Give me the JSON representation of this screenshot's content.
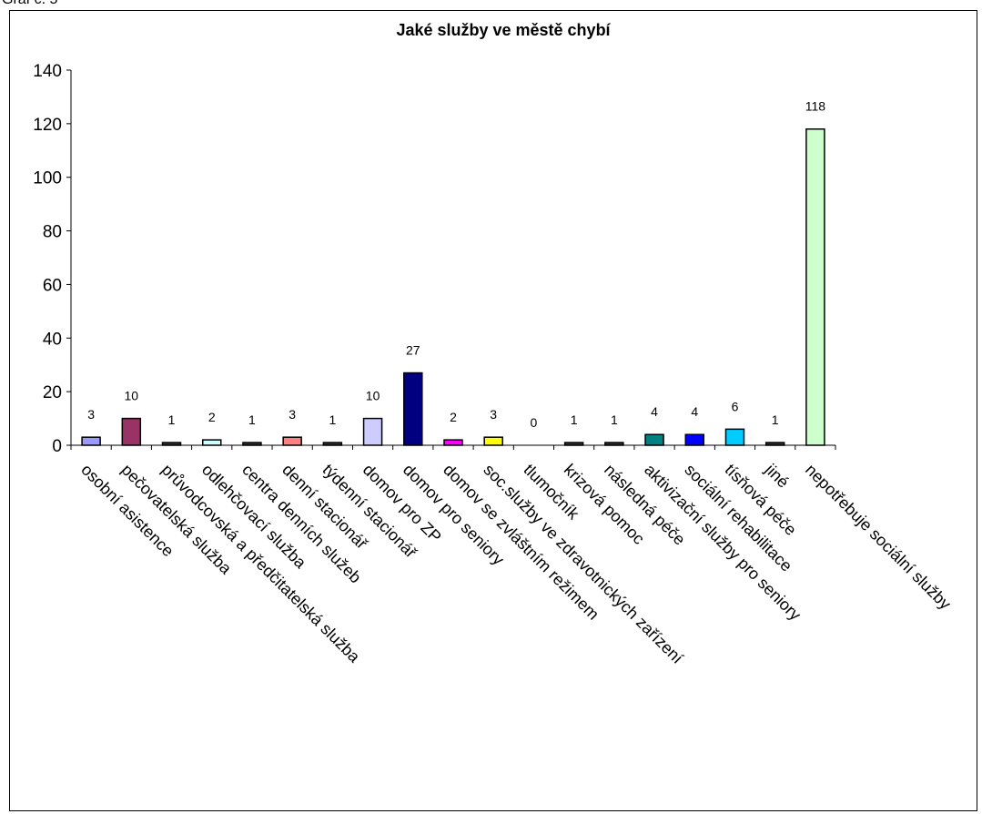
{
  "header": {
    "label": "Graf č. 5"
  },
  "chart_data": {
    "type": "bar",
    "title": "Jaké služby ve městě chybí",
    "xlabel": "",
    "ylabel": "",
    "ylim": [
      0,
      140
    ],
    "yticks": [
      0,
      20,
      40,
      60,
      80,
      100,
      120,
      140
    ],
    "grid": false,
    "legend": "none",
    "categories": [
      "osobní asistence",
      "pečovatelská služba",
      "průvodcovská a předčitatelská služba",
      "odlehčovací služba",
      "centra denních služeb",
      "denní stacionář",
      "týdenní stacionář",
      "domov pro ZP",
      "domov pro seniory",
      "domov se zvláštním režimem",
      "soc.služby ve  zdravotnických zařízení",
      "tlumočník",
      "krizová pomoc",
      "následná péče",
      "aktivizační služby pro seniory",
      "sociální rehabilitace",
      "tísňová péče",
      "jiné",
      "nepotřebuje sociální služby"
    ],
    "values": [
      3,
      10,
      1,
      2,
      1,
      3,
      1,
      10,
      27,
      2,
      3,
      0,
      1,
      1,
      4,
      4,
      6,
      1,
      118
    ],
    "colors": [
      "#9999ff",
      "#993366",
      "#333333",
      "#ccffff",
      "#333333",
      "#ff8080",
      "#333333",
      "#ccccff",
      "#000080",
      "#ff00ff",
      "#ffff00",
      "#ffffff",
      "#333333",
      "#333333",
      "#008080",
      "#0000ff",
      "#00ccff",
      "#333333",
      "#ccffcc"
    ]
  }
}
